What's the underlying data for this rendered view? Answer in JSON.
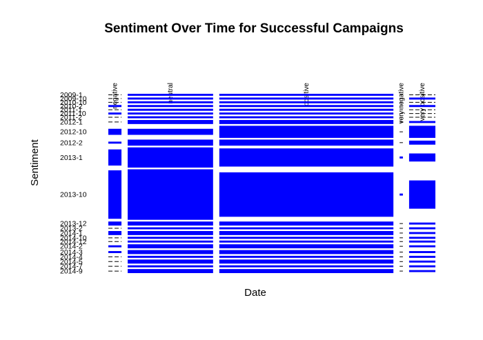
{
  "chart_data": {
    "type": "mosaic",
    "title": "Sentiment Over Time for Successful Campaigns",
    "xlabel": "Date",
    "ylabel": "Sentiment",
    "fill_color": "#0000ff",
    "empty_color": "#000000",
    "sentiments": [
      "negative",
      "neutral",
      "positive",
      "very negative",
      "very positive"
    ],
    "sentiment_widths": [
      4,
      26,
      53,
      1,
      8
    ],
    "date_labels": [
      "2009-1",
      "2009-10",
      "2010-10",
      "2010-2",
      "2011-1",
      "2011-10",
      "2011-2",
      "2012-1",
      "2012-10",
      "2012-2",
      "2013-1",
      "2013-10",
      "2013-12",
      "2013-2",
      "2014-1",
      "2014-10",
      "2014-12",
      "2014-2",
      "2014-3",
      "2014-4",
      "2014-5",
      "2014-7",
      "2014-9"
    ],
    "rows": [
      {
        "date": "2009-1",
        "height": 1,
        "cells": [
          0,
          1,
          1,
          0,
          0
        ]
      },
      {
        "date": "2009-10",
        "height": 1,
        "cells": [
          0,
          1,
          1,
          0,
          1
        ]
      },
      {
        "date": "2010-10",
        "height": 1,
        "cells": [
          0,
          1,
          1,
          0,
          0
        ]
      },
      {
        "date": "2010-2",
        "height": 1,
        "cells": [
          1,
          1,
          1,
          0,
          1
        ]
      },
      {
        "date": "2011-1",
        "height": 1,
        "cells": [
          0,
          1,
          1,
          0,
          0
        ]
      },
      {
        "date": "2011-10",
        "height": 1,
        "cells": [
          1,
          1,
          1,
          0,
          0
        ]
      },
      {
        "date": "2011-2",
        "height": 1,
        "cells": [
          0,
          1,
          1,
          0,
          0
        ]
      },
      {
        "date": "2012-1",
        "height": 2,
        "cells": [
          0,
          2,
          2,
          0,
          1
        ]
      },
      {
        "date": "2012-10",
        "height": 6,
        "cells": [
          3,
          3,
          6,
          0,
          6
        ]
      },
      {
        "date": "2012-2",
        "height": 3,
        "cells": [
          1,
          3,
          3,
          0,
          2
        ]
      },
      {
        "date": "2013-1",
        "height": 10,
        "cells": [
          8,
          10,
          9,
          1,
          4
        ]
      },
      {
        "date": "2013-10",
        "height": 25,
        "cells": [
          24,
          25,
          22,
          1,
          14
        ]
      },
      {
        "date": "2013-12",
        "height": 2,
        "cells": [
          2,
          2,
          2,
          0,
          1
        ]
      },
      {
        "date": "2013-2",
        "height": 1,
        "cells": [
          0,
          1,
          1,
          0,
          1
        ]
      },
      {
        "date": "2014-1",
        "height": 2,
        "cells": [
          2,
          2,
          2,
          0,
          1
        ]
      },
      {
        "date": "2014-10",
        "height": 1,
        "cells": [
          0,
          1,
          1,
          0,
          1
        ]
      },
      {
        "date": "2014-12",
        "height": 1,
        "cells": [
          0,
          1,
          1,
          0,
          1
        ]
      },
      {
        "date": "2014-2",
        "height": 2,
        "cells": [
          1,
          2,
          2,
          0,
          1
        ]
      },
      {
        "date": "2014-3",
        "height": 2,
        "cells": [
          1,
          2,
          2,
          0,
          1
        ]
      },
      {
        "date": "2014-4",
        "height": 1,
        "cells": [
          0,
          1,
          1,
          0,
          1
        ]
      },
      {
        "date": "2014-5",
        "height": 2,
        "cells": [
          0,
          2,
          2,
          0,
          1
        ]
      },
      {
        "date": "2014-7",
        "height": 1,
        "cells": [
          0,
          1,
          1,
          0,
          1
        ]
      },
      {
        "date": "2014-9",
        "height": 2,
        "cells": [
          0,
          2,
          2,
          0,
          1
        ]
      }
    ]
  }
}
